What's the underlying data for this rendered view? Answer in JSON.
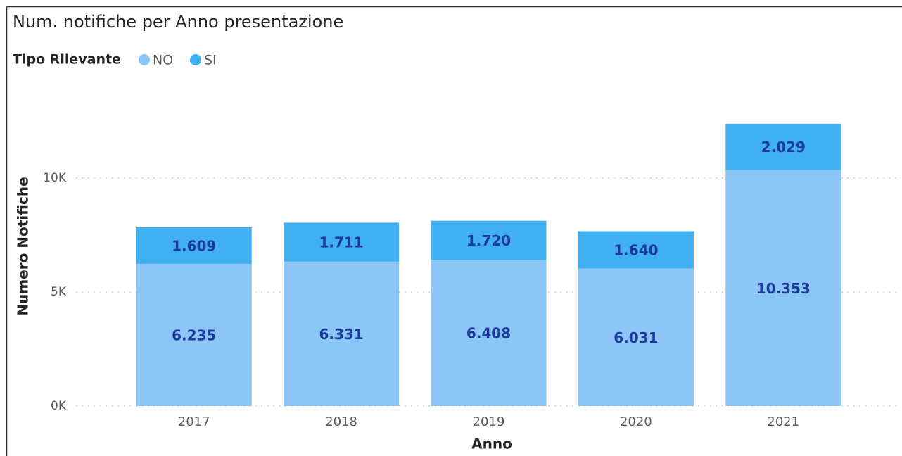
{
  "chart_data": {
    "type": "stacked_bar",
    "title": "Num. notifiche per Anno presentazione",
    "legend_title": "Tipo Rilevante",
    "x_label": "Anno",
    "y_label": "Numero Notifiche",
    "categories": [
      "2017",
      "2018",
      "2019",
      "2020",
      "2021"
    ],
    "series": [
      {
        "name": "NO",
        "color": "#8bc6f6",
        "values": [
          6235,
          6331,
          6408,
          6031,
          10353
        ],
        "value_labels": [
          "6.235",
          "6.331",
          "6.408",
          "6.031",
          "10.353"
        ]
      },
      {
        "name": "SI",
        "color": "#41b0f1",
        "values": [
          1609,
          1711,
          1720,
          1640,
          2029
        ],
        "value_labels": [
          "1.609",
          "1.711",
          "1.720",
          "1.640",
          "2.029"
        ]
      }
    ],
    "ylim": [
      0,
      14000
    ],
    "yticks": [
      {
        "value": 0,
        "label": "0K"
      },
      {
        "value": 5000,
        "label": "5K"
      },
      {
        "value": 10000,
        "label": "10K"
      }
    ],
    "grid": true,
    "legend_position": "top-left"
  }
}
